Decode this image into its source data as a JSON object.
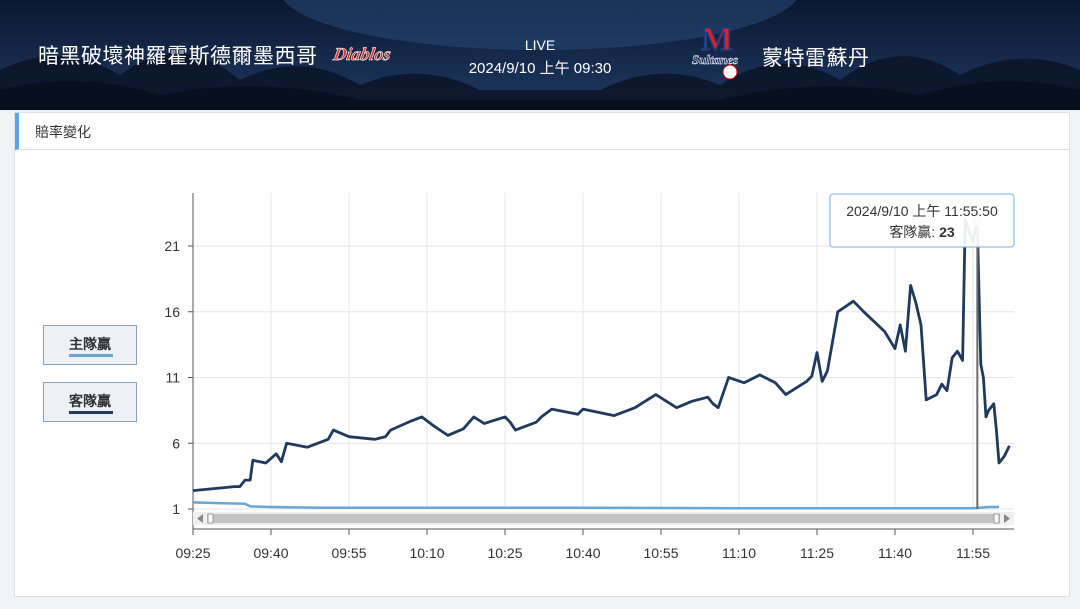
{
  "header": {
    "home_team": "暗黑破壞神羅霍斯德爾墨西哥",
    "home_logo_text": "Diablos",
    "live_label": "LIVE",
    "datetime": "2024/9/10 上午 09:30",
    "away_team": "蒙特雷蘇丹",
    "away_logo_text": "Sultanes"
  },
  "panel": {
    "title": "賠率變化"
  },
  "legend": {
    "home_label": "主隊贏",
    "away_label": "客隊贏"
  },
  "tooltip": {
    "time": "2024/9/10 上午 11:55:50",
    "series_label": "客隊贏: ",
    "value": "23"
  },
  "colors": {
    "home_line": "#6aa6d6",
    "away_line": "#1f3a5c",
    "header_bg": "#142746",
    "accent": "#58a6e6"
  },
  "chart_data": {
    "type": "line",
    "title": "",
    "xlabel": "",
    "ylabel": "",
    "x_ticks": [
      "09:25",
      "09:40",
      "09:55",
      "10:10",
      "10:25",
      "10:40",
      "10:55",
      "11:10",
      "11:25",
      "11:40",
      "11:55"
    ],
    "y_ticks": [
      1,
      6,
      11,
      16,
      21
    ],
    "xlim": [
      "09:25",
      "12:00"
    ],
    "ylim": [
      0.5,
      24
    ],
    "grid": true,
    "legend_position": "left",
    "series": [
      {
        "name": "主隊贏",
        "color": "#6aa6d6",
        "points": [
          [
            "09:25",
            1.5
          ],
          [
            "09:30",
            1.45
          ],
          [
            "09:35",
            1.4
          ],
          [
            "09:36",
            1.2
          ],
          [
            "09:40",
            1.15
          ],
          [
            "09:50",
            1.1
          ],
          [
            "10:10",
            1.1
          ],
          [
            "10:40",
            1.1
          ],
          [
            "11:10",
            1.05
          ],
          [
            "11:40",
            1.05
          ],
          [
            "11:55",
            1.05
          ],
          [
            "11:58",
            1.15
          ],
          [
            "12:00",
            1.15
          ]
        ]
      },
      {
        "name": "客隊贏",
        "color": "#1f3a5c",
        "points": [
          [
            "09:25",
            2.4
          ],
          [
            "09:33",
            2.7
          ],
          [
            "09:34",
            2.7
          ],
          [
            "09:35",
            3.2
          ],
          [
            "09:36",
            3.2
          ],
          [
            "09:36.5",
            4.7
          ],
          [
            "09:39",
            4.5
          ],
          [
            "09:41",
            5.2
          ],
          [
            "09:42",
            4.6
          ],
          [
            "09:43",
            6.0
          ],
          [
            "09:47",
            5.7
          ],
          [
            "09:51",
            6.3
          ],
          [
            "09:52",
            7.0
          ],
          [
            "09:55",
            6.5
          ],
          [
            "10:00",
            6.3
          ],
          [
            "10:02",
            6.5
          ],
          [
            "10:03",
            7.0
          ],
          [
            "10:07",
            7.7
          ],
          [
            "10:09",
            8.0
          ],
          [
            "10:11",
            7.4
          ],
          [
            "10:14",
            6.6
          ],
          [
            "10:17",
            7.1
          ],
          [
            "10:19",
            8.0
          ],
          [
            "10:21",
            7.5
          ],
          [
            "10:25",
            8.0
          ],
          [
            "10:26",
            7.6
          ],
          [
            "10:27",
            7.0
          ],
          [
            "10:31",
            7.6
          ],
          [
            "10:32",
            8.0
          ],
          [
            "10:34",
            8.6
          ],
          [
            "10:39",
            8.2
          ],
          [
            "10:40",
            8.6
          ],
          [
            "10:46",
            8.1
          ],
          [
            "10:50",
            8.7
          ],
          [
            "10:54",
            9.7
          ],
          [
            "10:58",
            8.7
          ],
          [
            "11:01",
            9.2
          ],
          [
            "11:04",
            9.5
          ],
          [
            "11:05",
            9.0
          ],
          [
            "11:06",
            8.7
          ],
          [
            "11:08",
            11.0
          ],
          [
            "11:11",
            10.6
          ],
          [
            "11:14",
            11.2
          ],
          [
            "11:17",
            10.6
          ],
          [
            "11:19",
            9.7
          ],
          [
            "11:23",
            10.7
          ],
          [
            "11:24",
            11.1
          ],
          [
            "11:25",
            12.9
          ],
          [
            "11:26",
            10.7
          ],
          [
            "11:27",
            11.5
          ],
          [
            "11:29",
            16.0
          ],
          [
            "11:32",
            16.8
          ],
          [
            "11:34",
            16.0
          ],
          [
            "11:38",
            14.5
          ],
          [
            "11:40",
            13.2
          ],
          [
            "11:41",
            15.0
          ],
          [
            "11:42",
            13.0
          ],
          [
            "11:43",
            18.0
          ],
          [
            "11:44",
            16.7
          ],
          [
            "11:45",
            15.0
          ],
          [
            "11:46",
            9.3
          ],
          [
            "11:48",
            9.7
          ],
          [
            "11:49",
            10.5
          ],
          [
            "11:50",
            10.0
          ],
          [
            "11:51",
            12.5
          ],
          [
            "11:52",
            13.0
          ],
          [
            "11:53",
            12.3
          ],
          [
            "11:53.5",
            23.0
          ],
          [
            "11:55",
            21.3
          ],
          [
            "11:55.8",
            23.0
          ],
          [
            "11:56.5",
            12.0
          ],
          [
            "11:57",
            11.0
          ],
          [
            "11:57.5",
            8.0
          ],
          [
            "11:58",
            8.5
          ],
          [
            "11:59",
            9.0
          ],
          [
            "11:59.5",
            7.0
          ],
          [
            "12:00",
            4.5
          ],
          [
            "12:01",
            5.0
          ],
          [
            "12:02",
            5.8
          ]
        ]
      }
    ],
    "highlight": {
      "x": "11:55:50",
      "series": "客隊贏",
      "value": 23
    }
  }
}
